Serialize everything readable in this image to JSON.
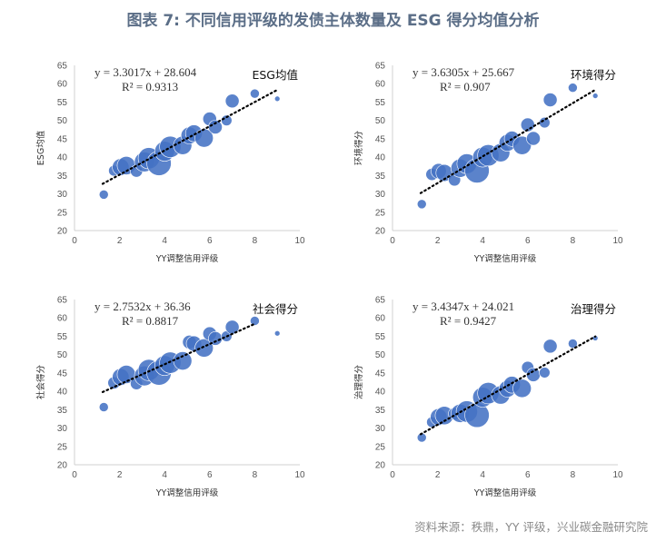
{
  "page": {
    "title": "图表 7:  不同信用评级的发债主体数量及 ESG 得分均值分析",
    "source": "资料来源：秩鼎，YY 评级，兴业碳金融研究院"
  },
  "colors": {
    "bubble": "#4472c4",
    "trend": "#000000",
    "title": "#5b6e87"
  },
  "chart_data": [
    {
      "type": "scatter",
      "title": "ESG均值",
      "xlabel": "YY调整信用评级",
      "ylabel": "ESG均值",
      "xlim": [
        0,
        10
      ],
      "ylim": [
        20,
        65
      ],
      "xticks": [
        0,
        2,
        4,
        6,
        8,
        10
      ],
      "yticks": [
        20,
        25,
        30,
        35,
        40,
        45,
        50,
        55,
        60,
        65
      ],
      "equation": "y = 3.3017x + 28.604",
      "r2": "R² = 0.9313",
      "trend": {
        "slope": 3.3017,
        "intercept": 28.604,
        "x0": 1.25,
        "x1": 9.0
      },
      "points": [
        {
          "x": 1.3,
          "y": 29.8,
          "r": 1.2
        },
        {
          "x": 1.75,
          "y": 36.3,
          "r": 1.4
        },
        {
          "x": 2.05,
          "y": 37.3,
          "r": 2.2
        },
        {
          "x": 2.3,
          "y": 37.7,
          "r": 2.4
        },
        {
          "x": 2.75,
          "y": 36.2,
          "r": 1.6
        },
        {
          "x": 3.1,
          "y": 38.7,
          "r": 2.6
        },
        {
          "x": 3.3,
          "y": 39.7,
          "r": 2.8
        },
        {
          "x": 3.75,
          "y": 38.3,
          "r": 3.2
        },
        {
          "x": 4.0,
          "y": 41.6,
          "r": 2.6
        },
        {
          "x": 4.25,
          "y": 42.8,
          "r": 2.8
        },
        {
          "x": 4.8,
          "y": 43.2,
          "r": 2.4
        },
        {
          "x": 5.1,
          "y": 45.9,
          "r": 2.2
        },
        {
          "x": 5.3,
          "y": 46.5,
          "r": 2.2
        },
        {
          "x": 5.75,
          "y": 45.2,
          "r": 2.4
        },
        {
          "x": 6.0,
          "y": 50.4,
          "r": 1.8
        },
        {
          "x": 6.25,
          "y": 48.2,
          "r": 1.8
        },
        {
          "x": 6.75,
          "y": 50.0,
          "r": 1.4
        },
        {
          "x": 7.0,
          "y": 55.3,
          "r": 1.8
        },
        {
          "x": 8.0,
          "y": 57.3,
          "r": 1.2
        },
        {
          "x": 9.0,
          "y": 55.9,
          "r": 0.7
        }
      ]
    },
    {
      "type": "scatter",
      "title": "环境得分",
      "xlabel": "YY调整信用评级",
      "ylabel": "环境得分",
      "xlim": [
        0,
        10
      ],
      "ylim": [
        20,
        65
      ],
      "xticks": [
        0,
        2,
        4,
        6,
        8,
        10
      ],
      "yticks": [
        20,
        25,
        30,
        35,
        40,
        45,
        50,
        55,
        60,
        65
      ],
      "equation": "y = 3.6305x + 25.667",
      "r2": "R² = 0.907",
      "trend": {
        "slope": 3.6305,
        "intercept": 25.667,
        "x0": 1.25,
        "x1": 9.0
      },
      "points": [
        {
          "x": 1.3,
          "y": 27.2,
          "r": 1.2
        },
        {
          "x": 1.75,
          "y": 35.3,
          "r": 1.6
        },
        {
          "x": 2.05,
          "y": 36.2,
          "r": 2.0
        },
        {
          "x": 2.3,
          "y": 35.7,
          "r": 2.2
        },
        {
          "x": 2.75,
          "y": 33.8,
          "r": 1.6
        },
        {
          "x": 3.0,
          "y": 37.0,
          "r": 2.4
        },
        {
          "x": 3.3,
          "y": 38.2,
          "r": 2.6
        },
        {
          "x": 3.75,
          "y": 36.3,
          "r": 3.2
        },
        {
          "x": 4.0,
          "y": 40.0,
          "r": 2.6
        },
        {
          "x": 4.25,
          "y": 40.5,
          "r": 2.8
        },
        {
          "x": 4.8,
          "y": 41.2,
          "r": 2.4
        },
        {
          "x": 5.1,
          "y": 43.9,
          "r": 2.2
        },
        {
          "x": 5.3,
          "y": 45.0,
          "r": 2.0
        },
        {
          "x": 5.75,
          "y": 43.2,
          "r": 2.4
        },
        {
          "x": 6.0,
          "y": 48.8,
          "r": 1.8
        },
        {
          "x": 6.25,
          "y": 45.1,
          "r": 1.8
        },
        {
          "x": 6.75,
          "y": 49.4,
          "r": 1.4
        },
        {
          "x": 7.0,
          "y": 55.6,
          "r": 1.8
        },
        {
          "x": 8.0,
          "y": 58.9,
          "r": 1.2
        },
        {
          "x": 9.0,
          "y": 56.7,
          "r": 0.7
        }
      ]
    },
    {
      "type": "scatter",
      "title": "社会得分",
      "xlabel": "YY调整信用评级",
      "ylabel": "社会得分",
      "xlim": [
        0,
        10
      ],
      "ylim": [
        20,
        65
      ],
      "xticks": [
        0,
        2,
        4,
        6,
        8,
        10
      ],
      "yticks": [
        20,
        25,
        30,
        35,
        40,
        45,
        50,
        55,
        60,
        65
      ],
      "equation": "y = 2.7532x + 36.36",
      "r2": "R² = 0.8817",
      "trend": {
        "slope": 2.7532,
        "intercept": 36.36,
        "x0": 1.25,
        "x1": 8.0
      },
      "points": [
        {
          "x": 1.3,
          "y": 35.7,
          "r": 1.2
        },
        {
          "x": 1.75,
          "y": 42.3,
          "r": 1.6
        },
        {
          "x": 2.05,
          "y": 43.9,
          "r": 2.2
        },
        {
          "x": 2.3,
          "y": 44.6,
          "r": 2.4
        },
        {
          "x": 2.75,
          "y": 42.1,
          "r": 1.6
        },
        {
          "x": 3.1,
          "y": 44.2,
          "r": 2.6
        },
        {
          "x": 3.3,
          "y": 45.8,
          "r": 2.8
        },
        {
          "x": 3.75,
          "y": 45.0,
          "r": 3.2
        },
        {
          "x": 4.0,
          "y": 47.0,
          "r": 2.6
        },
        {
          "x": 4.25,
          "y": 47.8,
          "r": 2.8
        },
        {
          "x": 4.8,
          "y": 48.3,
          "r": 2.4
        },
        {
          "x": 5.1,
          "y": 53.4,
          "r": 1.8
        },
        {
          "x": 5.3,
          "y": 53.0,
          "r": 2.0
        },
        {
          "x": 5.75,
          "y": 51.8,
          "r": 2.4
        },
        {
          "x": 6.0,
          "y": 55.7,
          "r": 1.8
        },
        {
          "x": 6.25,
          "y": 54.4,
          "r": 1.8
        },
        {
          "x": 6.75,
          "y": 55.0,
          "r": 1.4
        },
        {
          "x": 7.0,
          "y": 57.5,
          "r": 1.8
        },
        {
          "x": 8.0,
          "y": 59.2,
          "r": 1.2
        },
        {
          "x": 9.0,
          "y": 55.8,
          "r": 0.7
        }
      ]
    },
    {
      "type": "scatter",
      "title": "治理得分",
      "xlabel": "YY调整信用评级",
      "ylabel": "治理得分",
      "xlim": [
        0,
        10
      ],
      "ylim": [
        20,
        65
      ],
      "xticks": [
        0,
        2,
        4,
        6,
        8,
        10
      ],
      "yticks": [
        20,
        25,
        30,
        35,
        40,
        45,
        50,
        55,
        60,
        65
      ],
      "equation": "y = 3.4347x + 24.021",
      "r2": "R² = 0.9427",
      "trend": {
        "slope": 3.4347,
        "intercept": 24.021,
        "x0": 1.25,
        "x1": 9.0
      },
      "points": [
        {
          "x": 1.3,
          "y": 27.4,
          "r": 1.2
        },
        {
          "x": 1.75,
          "y": 31.6,
          "r": 1.4
        },
        {
          "x": 2.05,
          "y": 33.0,
          "r": 2.2
        },
        {
          "x": 2.3,
          "y": 33.4,
          "r": 2.4
        },
        {
          "x": 2.75,
          "y": 33.9,
          "r": 1.6
        },
        {
          "x": 3.0,
          "y": 34.0,
          "r": 2.4
        },
        {
          "x": 3.3,
          "y": 34.5,
          "r": 2.8
        },
        {
          "x": 3.75,
          "y": 33.5,
          "r": 3.2
        },
        {
          "x": 4.0,
          "y": 38.4,
          "r": 2.6
        },
        {
          "x": 4.25,
          "y": 39.5,
          "r": 2.8
        },
        {
          "x": 4.8,
          "y": 39.0,
          "r": 2.4
        },
        {
          "x": 5.1,
          "y": 40.7,
          "r": 2.2
        },
        {
          "x": 5.3,
          "y": 41.8,
          "r": 2.2
        },
        {
          "x": 5.75,
          "y": 40.8,
          "r": 2.4
        },
        {
          "x": 6.0,
          "y": 46.5,
          "r": 1.6
        },
        {
          "x": 6.25,
          "y": 44.5,
          "r": 1.8
        },
        {
          "x": 6.75,
          "y": 45.1,
          "r": 1.4
        },
        {
          "x": 7.0,
          "y": 52.3,
          "r": 1.8
        },
        {
          "x": 8.0,
          "y": 53.0,
          "r": 1.2
        },
        {
          "x": 9.0,
          "y": 54.5,
          "r": 0.7
        }
      ]
    }
  ]
}
